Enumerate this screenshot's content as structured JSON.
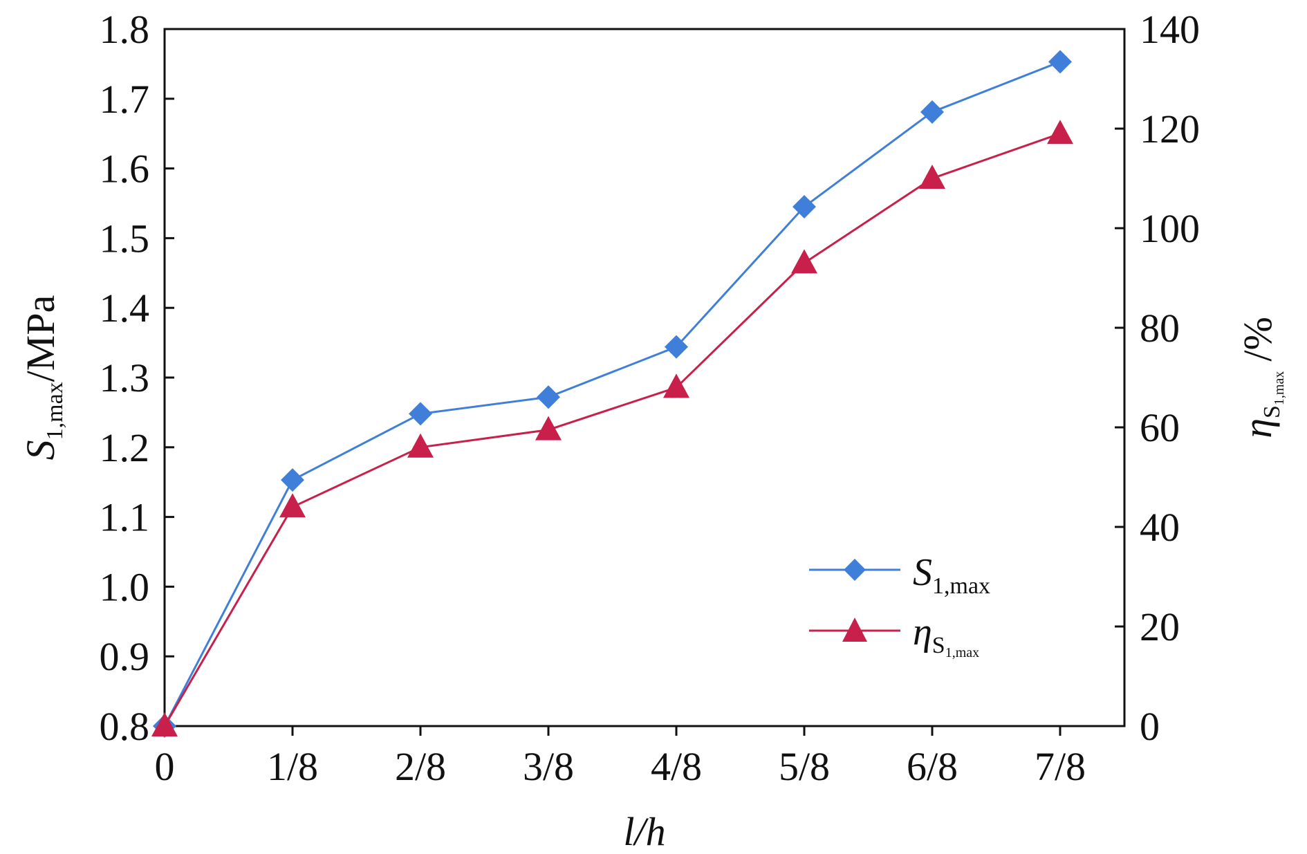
{
  "chart_data": {
    "type": "line",
    "title": "",
    "categories": [
      "0",
      "1/8",
      "2/8",
      "3/8",
      "4/8",
      "5/8",
      "6/8",
      "7/8"
    ],
    "xlabel": "l/h",
    "ylabel": {
      "main": "S",
      "sub": "1,max",
      "unit": "/MPa"
    },
    "y2label": {
      "main": "η",
      "sub": "S",
      "subsub": "1,max",
      "unit": "/%"
    },
    "ylim": [
      0.8,
      1.8
    ],
    "y2lim": [
      0,
      140
    ],
    "yticks": [
      "0.8",
      "0.9",
      "1.0",
      "1.1",
      "1.2",
      "1.3",
      "1.4",
      "1.5",
      "1.6",
      "1.7",
      "1.8"
    ],
    "y2ticks": [
      "0",
      "20",
      "40",
      "60",
      "80",
      "100",
      "120",
      "140"
    ],
    "grid": false,
    "legend_position": "bottom-right",
    "series": [
      {
        "name": {
          "main": "S",
          "sub": "1,max"
        },
        "axis": "left",
        "marker": "diamond",
        "color": "#3F7FD9",
        "values": [
          0.8,
          1.153,
          1.248,
          1.272,
          1.344,
          1.545,
          1.681,
          1.753
        ]
      },
      {
        "name": {
          "main": "η",
          "sub": "S",
          "subsub": "1,max"
        },
        "axis": "right",
        "marker": "triangle",
        "color": "#C8204A",
        "values": [
          0,
          44,
          56,
          59.5,
          68,
          93,
          110,
          119
        ]
      }
    ]
  }
}
